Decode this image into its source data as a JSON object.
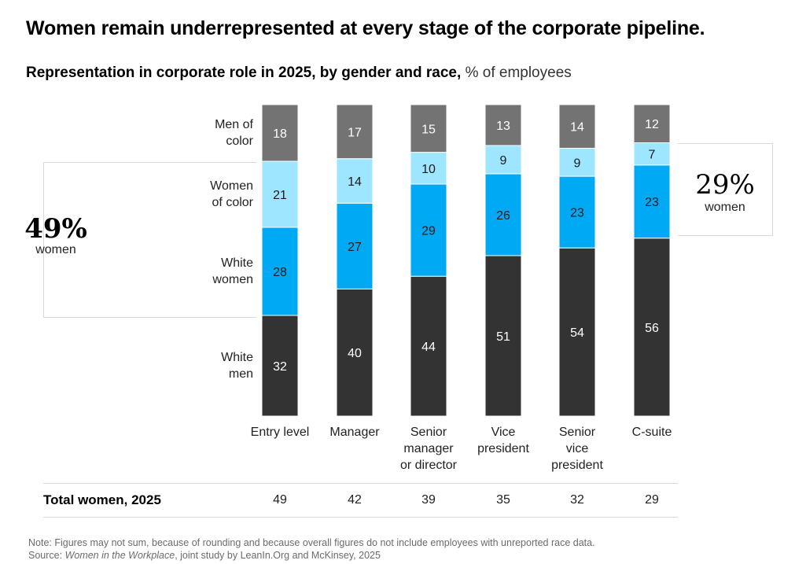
{
  "title": "Women remain underrepresented at every stage of the corporate pipeline.",
  "subtitle": {
    "bold": "Representation in corporate role in 2025, by gender and race,",
    "normal": " % of employees"
  },
  "callouts": {
    "left": {
      "value": "49%",
      "label": "women"
    },
    "right": {
      "value": "29%",
      "label": "women"
    }
  },
  "legend": [
    {
      "key": "men_of_color",
      "label_lines": [
        "Men of",
        "color"
      ]
    },
    {
      "key": "women_of_color",
      "label_lines": [
        "Women",
        "of color"
      ]
    },
    {
      "key": "white_women",
      "label_lines": [
        "White",
        "women"
      ]
    },
    {
      "key": "white_men",
      "label_lines": [
        "White",
        "men"
      ]
    }
  ],
  "colors": {
    "men_of_color": "#737373",
    "women_of_color": "#9ee6ff",
    "white_women": "#00a9f4",
    "white_men": "#333333"
  },
  "total_row": {
    "label": "Total women, 2025",
    "values": [
      "49",
      "42",
      "39",
      "35",
      "32",
      "29"
    ]
  },
  "note": "Note: Figures may not sum, because of rounding and because overall figures do not include employees with unreported race data.",
  "source": {
    "prefix": "Source: ",
    "italic": "Women in the Workplace",
    "suffix": ", joint study by LeanIn.Org and McKinsey, 2025"
  },
  "chart_data": {
    "type": "bar",
    "stacked": true,
    "title": "Women remain underrepresented at every stage of the corporate pipeline.",
    "subtitle": "Representation in corporate role in 2025, by gender and race, % of employees",
    "xlabel": "",
    "ylabel": "% of employees",
    "ylim": [
      0,
      100
    ],
    "grid": false,
    "categories": [
      [
        "Entry level"
      ],
      [
        "Manager"
      ],
      [
        "Senior",
        "manager",
        "or director"
      ],
      [
        "Vice",
        "president"
      ],
      [
        "Senior",
        "vice",
        "president"
      ],
      [
        "C-suite"
      ]
    ],
    "series": [
      {
        "name": "White men",
        "key": "white_men",
        "values": [
          32,
          40,
          44,
          51,
          54,
          56
        ]
      },
      {
        "name": "White women",
        "key": "white_women",
        "values": [
          28,
          27,
          29,
          26,
          23,
          23
        ]
      },
      {
        "name": "Women of color",
        "key": "women_of_color",
        "values": [
          21,
          14,
          10,
          9,
          9,
          7
        ]
      },
      {
        "name": "Men of color",
        "key": "men_of_color",
        "values": [
          18,
          17,
          15,
          13,
          14,
          12
        ]
      }
    ]
  }
}
